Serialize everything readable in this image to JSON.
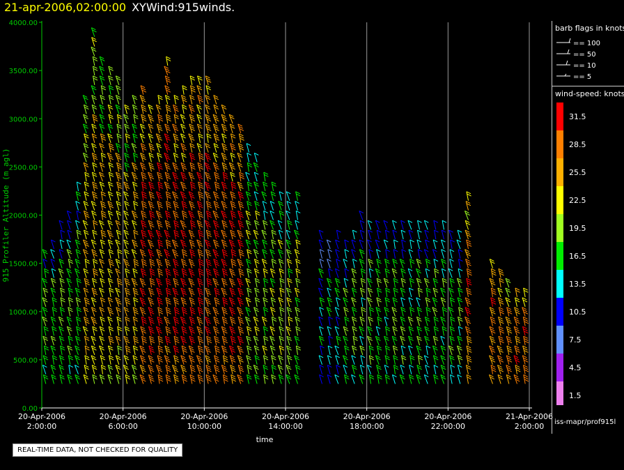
{
  "header": {
    "datetime": "21-apr-2006,02:00:00",
    "name": "XYWind:915winds."
  },
  "chart_data": {
    "type": "scatter",
    "subtype": "wind-barbs",
    "title": "",
    "ylabel": "915 Profiler Altitude (m agl)",
    "xlabel": "time",
    "ylim": [
      0,
      4000
    ],
    "y_ticks": [
      "0.00",
      "500.00",
      "1000.00",
      "1500.00",
      "2000.00",
      "2500.00",
      "3000.00",
      "3500.00",
      "4000.00"
    ],
    "x_range_hours": [
      0,
      24
    ],
    "x_ticks": [
      {
        "h": 0,
        "l1": "20-Apr-2006",
        "l2": "2:00:00"
      },
      {
        "h": 4,
        "l1": "20-Apr-2006",
        "l2": "6:00:00"
      },
      {
        "h": 8,
        "l1": "20-Apr-2006",
        "l2": "10:00:00"
      },
      {
        "h": 12,
        "l1": "20-Apr-2006",
        "l2": "14:00:00"
      },
      {
        "h": 16,
        "l1": "20-Apr-2006",
        "l2": "18:00:00"
      },
      {
        "h": 20,
        "l1": "20-Apr-2006",
        "l2": "22:00:00"
      },
      {
        "h": 24,
        "l1": "21-Apr-2006",
        "l2": "2:00:00"
      }
    ],
    "grid": "vertical",
    "profile_tops_m": [
      {
        "h": 0.2,
        "top": 1600
      },
      {
        "h": 0.6,
        "top": 1700
      },
      {
        "h": 1.0,
        "top": 1900
      },
      {
        "h": 1.4,
        "top": 2000
      },
      {
        "h": 1.8,
        "top": 2300
      },
      {
        "h": 2.2,
        "top": 3200
      },
      {
        "h": 2.6,
        "top": 3900
      },
      {
        "h": 3.0,
        "top": 3600
      },
      {
        "h": 3.4,
        "top": 3500
      },
      {
        "h": 3.8,
        "top": 3400
      },
      {
        "h": 4.2,
        "top": 3100
      },
      {
        "h": 4.6,
        "top": 3200
      },
      {
        "h": 5.0,
        "top": 3300
      },
      {
        "h": 5.4,
        "top": 3100
      },
      {
        "h": 5.8,
        "top": 3200
      },
      {
        "h": 6.2,
        "top": 3600
      },
      {
        "h": 6.6,
        "top": 3200
      },
      {
        "h": 7.0,
        "top": 3300
      },
      {
        "h": 7.4,
        "top": 3400
      },
      {
        "h": 7.8,
        "top": 3400
      },
      {
        "h": 8.2,
        "top": 3400
      },
      {
        "h": 8.6,
        "top": 3200
      },
      {
        "h": 9.0,
        "top": 3100
      },
      {
        "h": 9.4,
        "top": 3000
      },
      {
        "h": 9.8,
        "top": 2900
      },
      {
        "h": 10.2,
        "top": 2700
      },
      {
        "h": 10.6,
        "top": 2600
      },
      {
        "h": 11.0,
        "top": 2400
      },
      {
        "h": 11.4,
        "top": 2300
      },
      {
        "h": 11.8,
        "top": 2200
      },
      {
        "h": 12.2,
        "top": 2200
      },
      {
        "h": 12.6,
        "top": 2200
      },
      {
        "h": 13.8,
        "top": 1800
      },
      {
        "h": 14.2,
        "top": 1700
      },
      {
        "h": 14.6,
        "top": 1800
      },
      {
        "h": 15.0,
        "top": 1700
      },
      {
        "h": 15.4,
        "top": 1800
      },
      {
        "h": 15.8,
        "top": 2000
      },
      {
        "h": 16.2,
        "top": 1900
      },
      {
        "h": 16.6,
        "top": 1900
      },
      {
        "h": 17.0,
        "top": 1900
      },
      {
        "h": 17.4,
        "top": 1900
      },
      {
        "h": 17.8,
        "top": 1900
      },
      {
        "h": 18.2,
        "top": 1900
      },
      {
        "h": 18.6,
        "top": 1900
      },
      {
        "h": 19.0,
        "top": 1900
      },
      {
        "h": 19.4,
        "top": 1900
      },
      {
        "h": 19.8,
        "top": 1900
      },
      {
        "h": 20.2,
        "top": 1800
      },
      {
        "h": 20.6,
        "top": 1800
      },
      {
        "h": 21.0,
        "top": 2200
      },
      {
        "h": 22.2,
        "top": 1500
      },
      {
        "h": 22.6,
        "top": 1400
      },
      {
        "h": 23.0,
        "top": 1300
      },
      {
        "h": 23.4,
        "top": 1200
      },
      {
        "h": 23.8,
        "top": 1200
      }
    ],
    "profile_bottom_m": 250,
    "speed_regime_knots": [
      {
        "from": 0,
        "to": 2,
        "speed": 18
      },
      {
        "from": 2,
        "to": 5,
        "speed": 24
      },
      {
        "from": 5,
        "to": 10,
        "speed": 30
      },
      {
        "from": 10,
        "to": 13,
        "speed": 20
      },
      {
        "from": 13,
        "to": 15,
        "speed": 14
      },
      {
        "from": 15,
        "to": 21,
        "speed": 17
      },
      {
        "from": 21,
        "to": 24,
        "speed": 28
      }
    ]
  },
  "legend": {
    "barb_title": "barb flags in knots",
    "barbs": [
      {
        "label": "== 100"
      },
      {
        "label": "== 50"
      },
      {
        "label": "== 10"
      },
      {
        "label": "== 5"
      }
    ],
    "speed_title": "wind-speed: knots",
    "scale": [
      {
        "label": "31.5",
        "color": "#ff0000"
      },
      {
        "label": "28.5",
        "color": "#ff8000"
      },
      {
        "label": "25.5",
        "color": "#ffb000"
      },
      {
        "label": "22.5",
        "color": "#ffff00"
      },
      {
        "label": "19.5",
        "color": "#a0ff20"
      },
      {
        "label": "16.5",
        "color": "#00ee00"
      },
      {
        "label": "13.5",
        "color": "#00ffff"
      },
      {
        "label": "10.5",
        "color": "#0000ff"
      },
      {
        "label": "7.5",
        "color": "#6090ff"
      },
      {
        "label": "4.5",
        "color": "#a020f0"
      },
      {
        "label": "1.5",
        "color": "#ee80ee"
      }
    ]
  },
  "footer": "iss-mapr/prof915l",
  "notice": "REAL-TIME DATA, NOT CHECKED FOR QUALITY",
  "colors": {
    "axis": "#00cc00",
    "grid": "#9a9a9a",
    "bg": "#000000"
  }
}
